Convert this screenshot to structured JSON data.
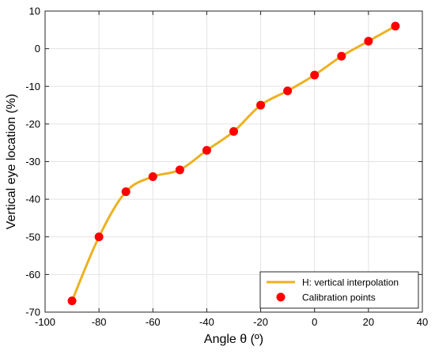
{
  "chart_data": {
    "type": "line",
    "title": "",
    "xlabel": "Angle θ (º)",
    "ylabel": "Vertical eye location (%)",
    "xlim": [
      -100,
      40
    ],
    "ylim": [
      -70,
      10
    ],
    "xticks": [
      -100,
      -80,
      -60,
      -40,
      -20,
      0,
      20,
      40
    ],
    "yticks": [
      -70,
      -60,
      -50,
      -40,
      -30,
      -20,
      -10,
      0,
      10
    ],
    "grid": true,
    "legend_position": "bottom-right",
    "series": [
      {
        "name": "H: vertical interpolation",
        "kind": "line",
        "color": "#EDB120",
        "x": [
          -90,
          -80,
          -70,
          -60,
          -50,
          -40,
          -30,
          -20,
          -10,
          0,
          10,
          20,
          30
        ],
        "y": [
          -67,
          -50,
          -38,
          -34,
          -32.2,
          -27,
          -22,
          -15,
          -11.2,
          -7,
          -2,
          2,
          6
        ]
      },
      {
        "name": "Calibration points",
        "kind": "scatter",
        "color": "#FF0000",
        "x": [
          -90,
          -80,
          -70,
          -60,
          -50,
          -40,
          -30,
          -20,
          -10,
          0,
          10,
          20,
          30
        ],
        "y": [
          -67,
          -50,
          -38,
          -34,
          -32.2,
          -27,
          -22,
          -15,
          -11.2,
          -7,
          -2,
          2,
          6
        ]
      }
    ]
  }
}
